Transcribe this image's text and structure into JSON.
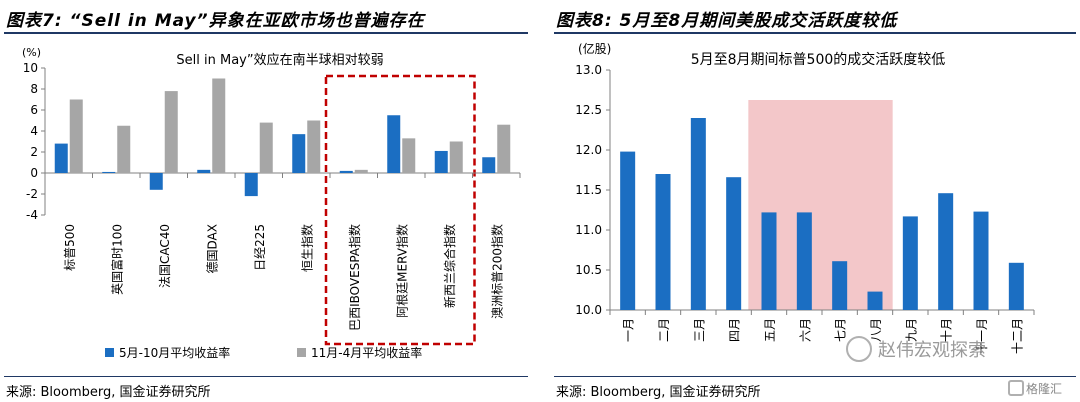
{
  "left": {
    "figure_title": "图表7: “Sell in May”异象在亚欧市场也普遍存在",
    "source": "来源: Bloomberg, 国金证券研究所"
  },
  "right": {
    "figure_title": "图表8: 5月至8月期间美股成交活跃度较低",
    "source": "来源: Bloomberg, 国金证券研究所"
  },
  "watermark": {
    "text": "赵伟宏观探索",
    "brand": "格隆汇",
    "brand_icon": "g-logo-icon",
    "icon": "wechat-icon"
  },
  "colors": {
    "blue": "#1b6ec2",
    "gray": "#a6a6a6",
    "highlight": "#f3c7c9",
    "dashed_box": "#c00000",
    "title_rule": "#1f3864"
  },
  "chart_data": [
    {
      "type": "bar",
      "title": "Sell in May”效应在南半球相对较弱",
      "unit": "(%)",
      "categories": [
        "标普500",
        "英国富时100",
        "法国CAC40",
        "德国DAX",
        "日经225",
        "恒生指数",
        "巴西IBOVESPA指数",
        "阿根廷MERV指数",
        "新西兰综合指数",
        "澳洲标普200指数"
      ],
      "series": [
        {
          "name": "5月-10月平均收益率",
          "color": "#1b6ec2",
          "values": [
            2.8,
            0.1,
            -1.6,
            0.3,
            -2.2,
            3.7,
            0.2,
            5.5,
            2.1,
            1.5
          ]
        },
        {
          "name": "11月-4月平均收益率",
          "color": "#a6a6a6",
          "values": [
            7.0,
            4.5,
            7.8,
            9.0,
            4.8,
            5.0,
            0.3,
            3.3,
            3.0,
            4.6
          ]
        }
      ],
      "ylim": [
        -4,
        10
      ],
      "yticks": [
        -4,
        -2,
        0,
        2,
        4,
        6,
        8,
        10
      ],
      "grid": false,
      "legend_position": "bottom",
      "highlight_group": [
        "巴西IBOVESPA指数",
        "阿根廷MERV指数",
        "新西兰综合指数"
      ]
    },
    {
      "type": "bar",
      "title": "5月至8月期间标普500的成交活跃度较低",
      "unit": "(亿股)",
      "categories": [
        "一月",
        "二月",
        "三月",
        "四月",
        "五月",
        "六月",
        "七月",
        "八月",
        "九月",
        "十月",
        "十一月",
        "十二月"
      ],
      "values": [
        11.98,
        11.7,
        12.4,
        11.66,
        11.22,
        11.22,
        10.61,
        10.23,
        11.17,
        11.46,
        11.23,
        10.59
      ],
      "ylim": [
        10.0,
        13.0
      ],
      "yticks": [
        "10.0",
        "10.5",
        "11.0",
        "11.5",
        "12.0",
        "12.5",
        "13.0"
      ],
      "color": "#1b6ec2",
      "grid": false,
      "highlight_range": [
        "五月",
        "八月"
      ]
    }
  ]
}
